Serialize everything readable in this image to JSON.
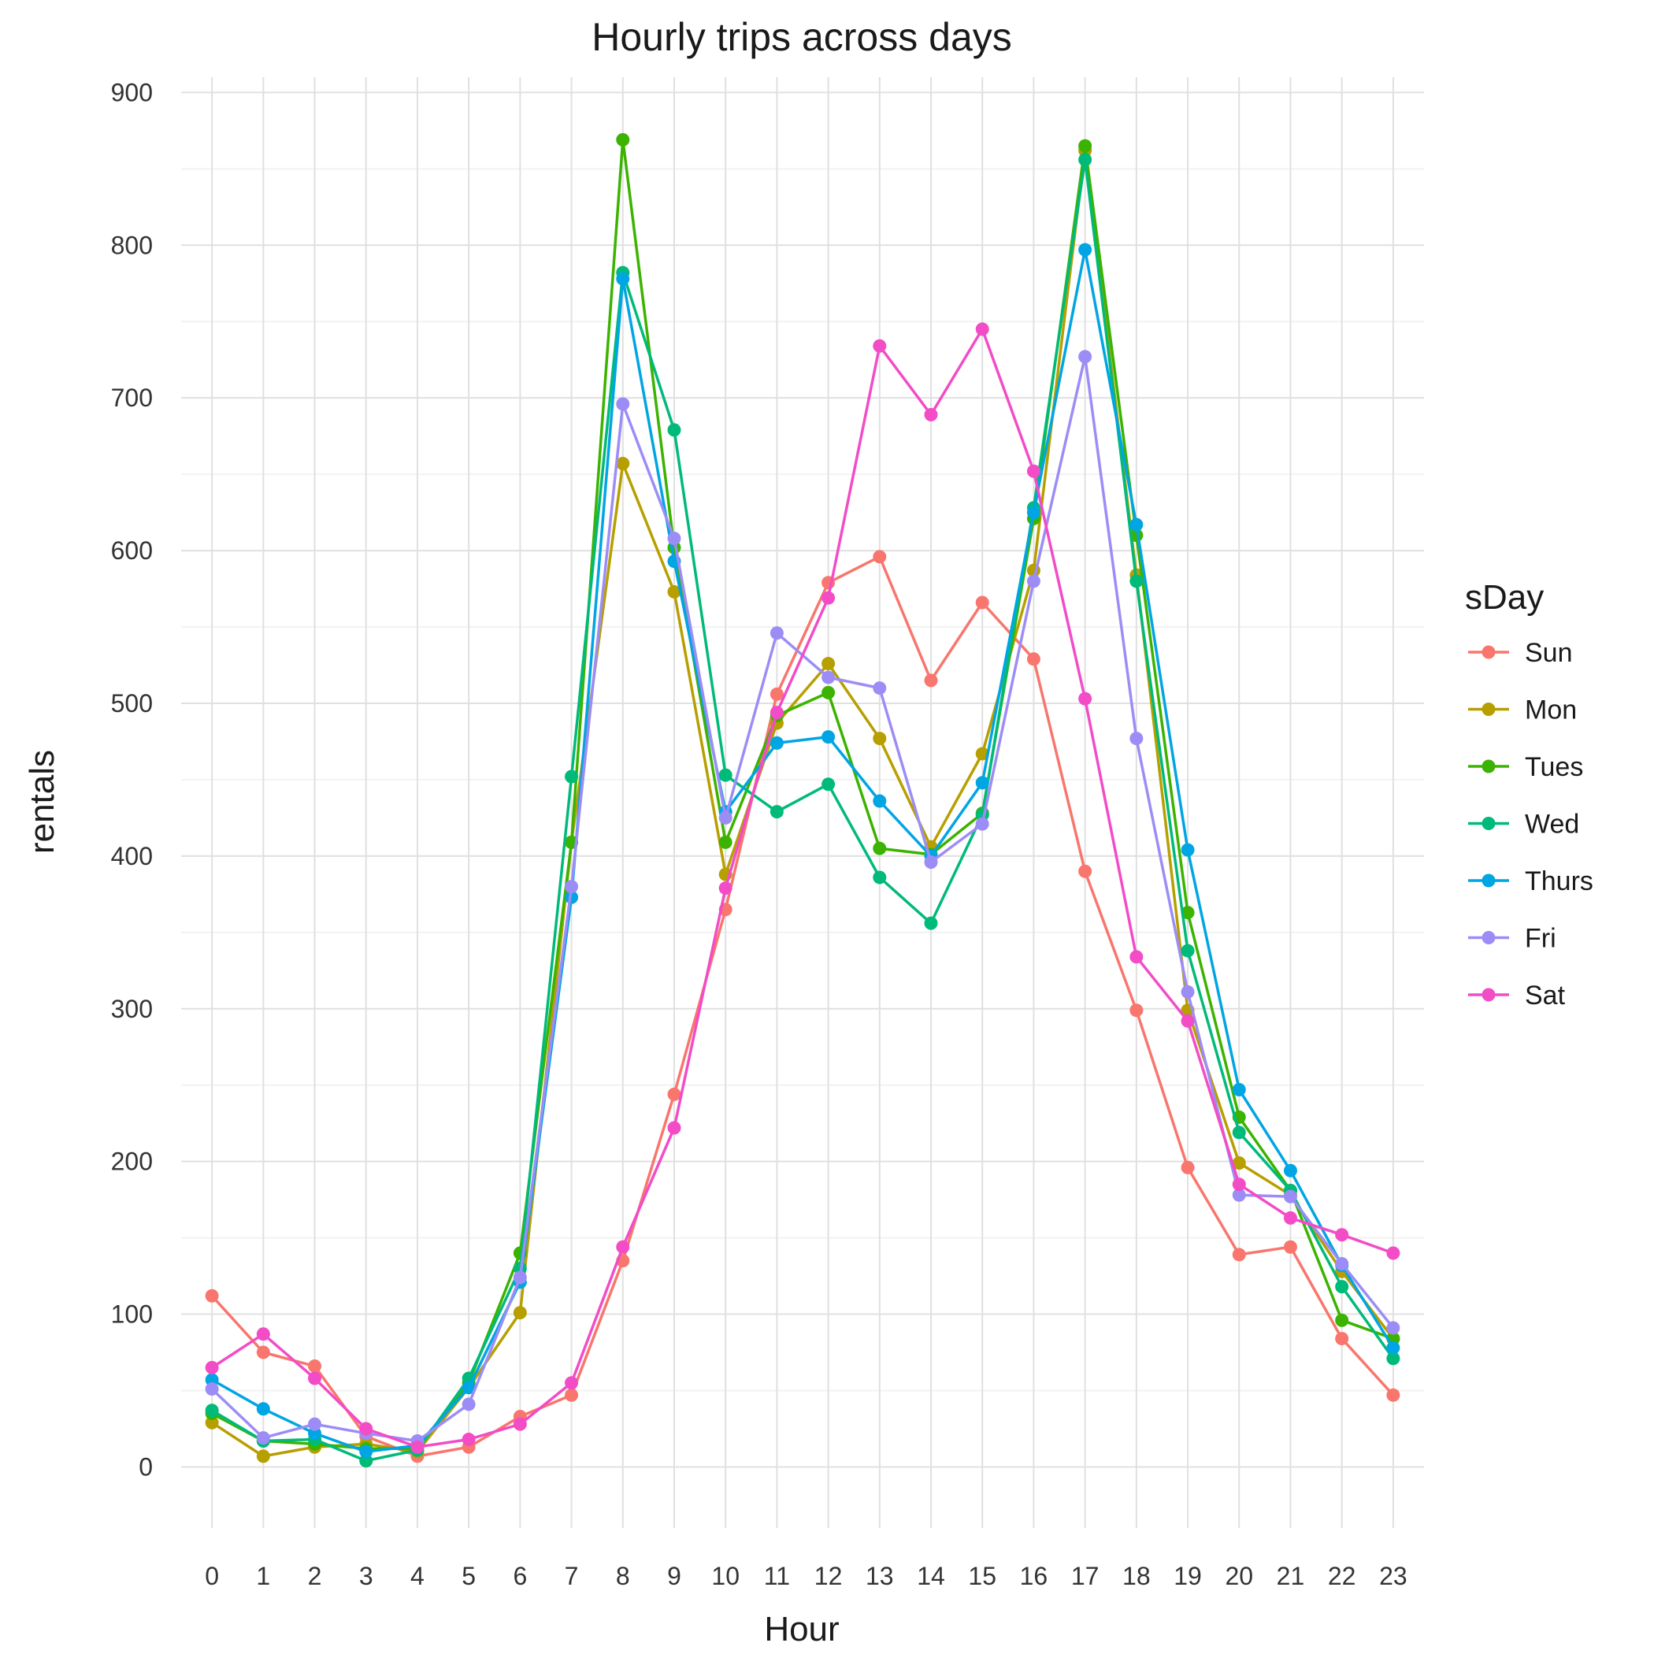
{
  "chart_data": {
    "type": "line",
    "title": "Hourly trips across days",
    "xlabel": "Hour",
    "ylabel": "rentals",
    "legend_title": "sDay",
    "legend_position": "right",
    "grid": true,
    "x": [
      0,
      1,
      2,
      3,
      4,
      5,
      6,
      7,
      8,
      9,
      10,
      11,
      12,
      13,
      14,
      15,
      16,
      17,
      18,
      19,
      20,
      21,
      22,
      23
    ],
    "yticks": [
      0,
      100,
      200,
      300,
      400,
      500,
      600,
      700,
      800,
      900
    ],
    "ylim": [
      -40,
      910
    ],
    "series": [
      {
        "name": "Sun",
        "color": "#F8766D",
        "values": [
          112,
          75,
          66,
          20,
          7,
          13,
          33,
          47,
          135,
          244,
          365,
          506,
          579,
          596,
          515,
          566,
          529,
          390,
          299,
          196,
          139,
          144,
          84,
          47
        ]
      },
      {
        "name": "Mon",
        "color": "#B79F00",
        "values": [
          29,
          7,
          13,
          15,
          10,
          52,
          101,
          409,
          657,
          573,
          388,
          487,
          526,
          477,
          406,
          467,
          587,
          862,
          584,
          299,
          199,
          178,
          128,
          84
        ]
      },
      {
        "name": "Tues",
        "color": "#3BB300",
        "values": [
          35,
          17,
          15,
          12,
          12,
          55,
          140,
          409,
          869,
          602,
          409,
          492,
          507,
          405,
          401,
          428,
          621,
          865,
          610,
          363,
          229,
          181,
          96,
          84
        ]
      },
      {
        "name": "Wed",
        "color": "#00BA7A",
        "values": [
          37,
          17,
          18,
          4,
          11,
          58,
          130,
          452,
          782,
          679,
          453,
          429,
          447,
          386,
          356,
          427,
          628,
          856,
          580,
          338,
          219,
          181,
          118,
          71
        ]
      },
      {
        "name": "Thurs",
        "color": "#00A5E3",
        "values": [
          57,
          38,
          22,
          10,
          14,
          52,
          121,
          373,
          778,
          593,
          429,
          474,
          478,
          436,
          400,
          448,
          625,
          797,
          617,
          404,
          247,
          194,
          132,
          78
        ]
      },
      {
        "name": "Fri",
        "color": "#9C8DF6",
        "values": [
          51,
          19,
          28,
          22,
          17,
          41,
          124,
          380,
          696,
          608,
          425,
          546,
          517,
          510,
          396,
          421,
          580,
          727,
          477,
          311,
          178,
          177,
          133,
          91
        ]
      },
      {
        "name": "Sat",
        "color": "#F24CC7",
        "values": [
          65,
          87,
          58,
          25,
          13,
          18,
          28,
          55,
          144,
          222,
          379,
          494,
          569,
          734,
          689,
          745,
          652,
          503,
          334,
          292,
          185,
          163,
          152,
          140
        ]
      }
    ]
  }
}
